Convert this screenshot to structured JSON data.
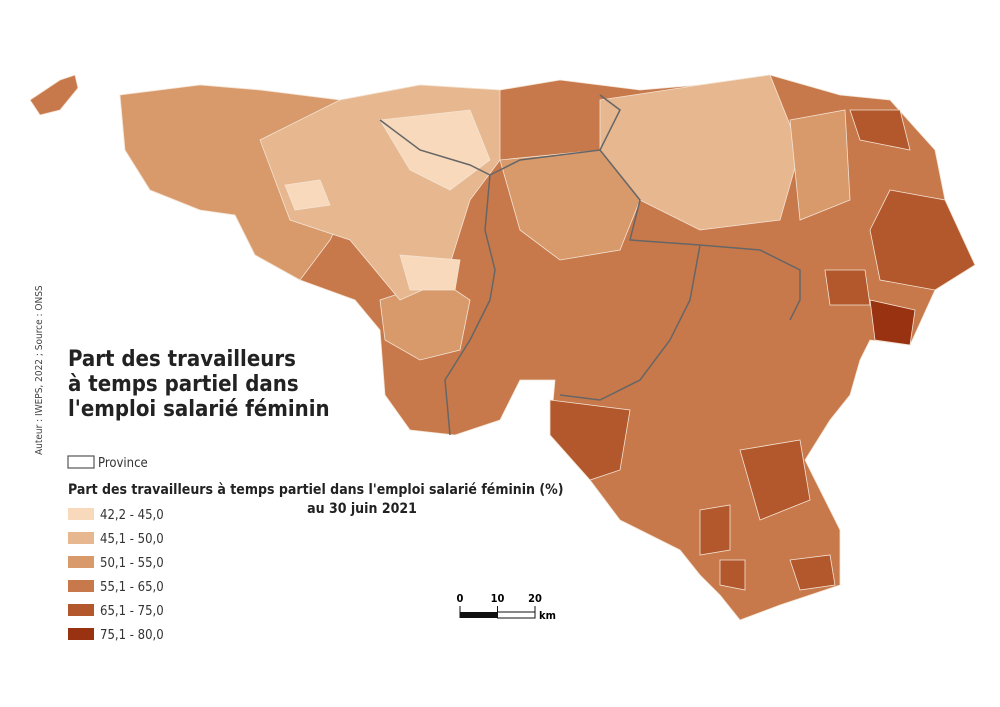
{
  "title_lines": [
    "Part des travailleurs",
    "à temps partiel dans",
    "l'emploi salarié féminin"
  ],
  "credit": "Auteur : IWEPS, 2022 ; Source : ONSS",
  "legend": {
    "province_label": "Province",
    "title": "Part des travailleurs à temps partiel dans l'emploi salarié féminin (%)",
    "subtitle": "au 30 juin 2021",
    "classes": [
      {
        "label": "42,2 - 45,0",
        "color": "#f8d9bb"
      },
      {
        "label": "45,1 - 50,0",
        "color": "#e7b78f"
      },
      {
        "label": "50,1 - 55,0",
        "color": "#d8996b"
      },
      {
        "label": "55,1 - 65,0",
        "color": "#c8794b"
      },
      {
        "label": "65,1 - 75,0",
        "color": "#b2582c"
      },
      {
        "label": "75,1 - 80,0",
        "color": "#983210"
      }
    ]
  },
  "scale_bar": {
    "ticks": [
      0,
      10,
      20
    ],
    "unit": "km"
  }
}
